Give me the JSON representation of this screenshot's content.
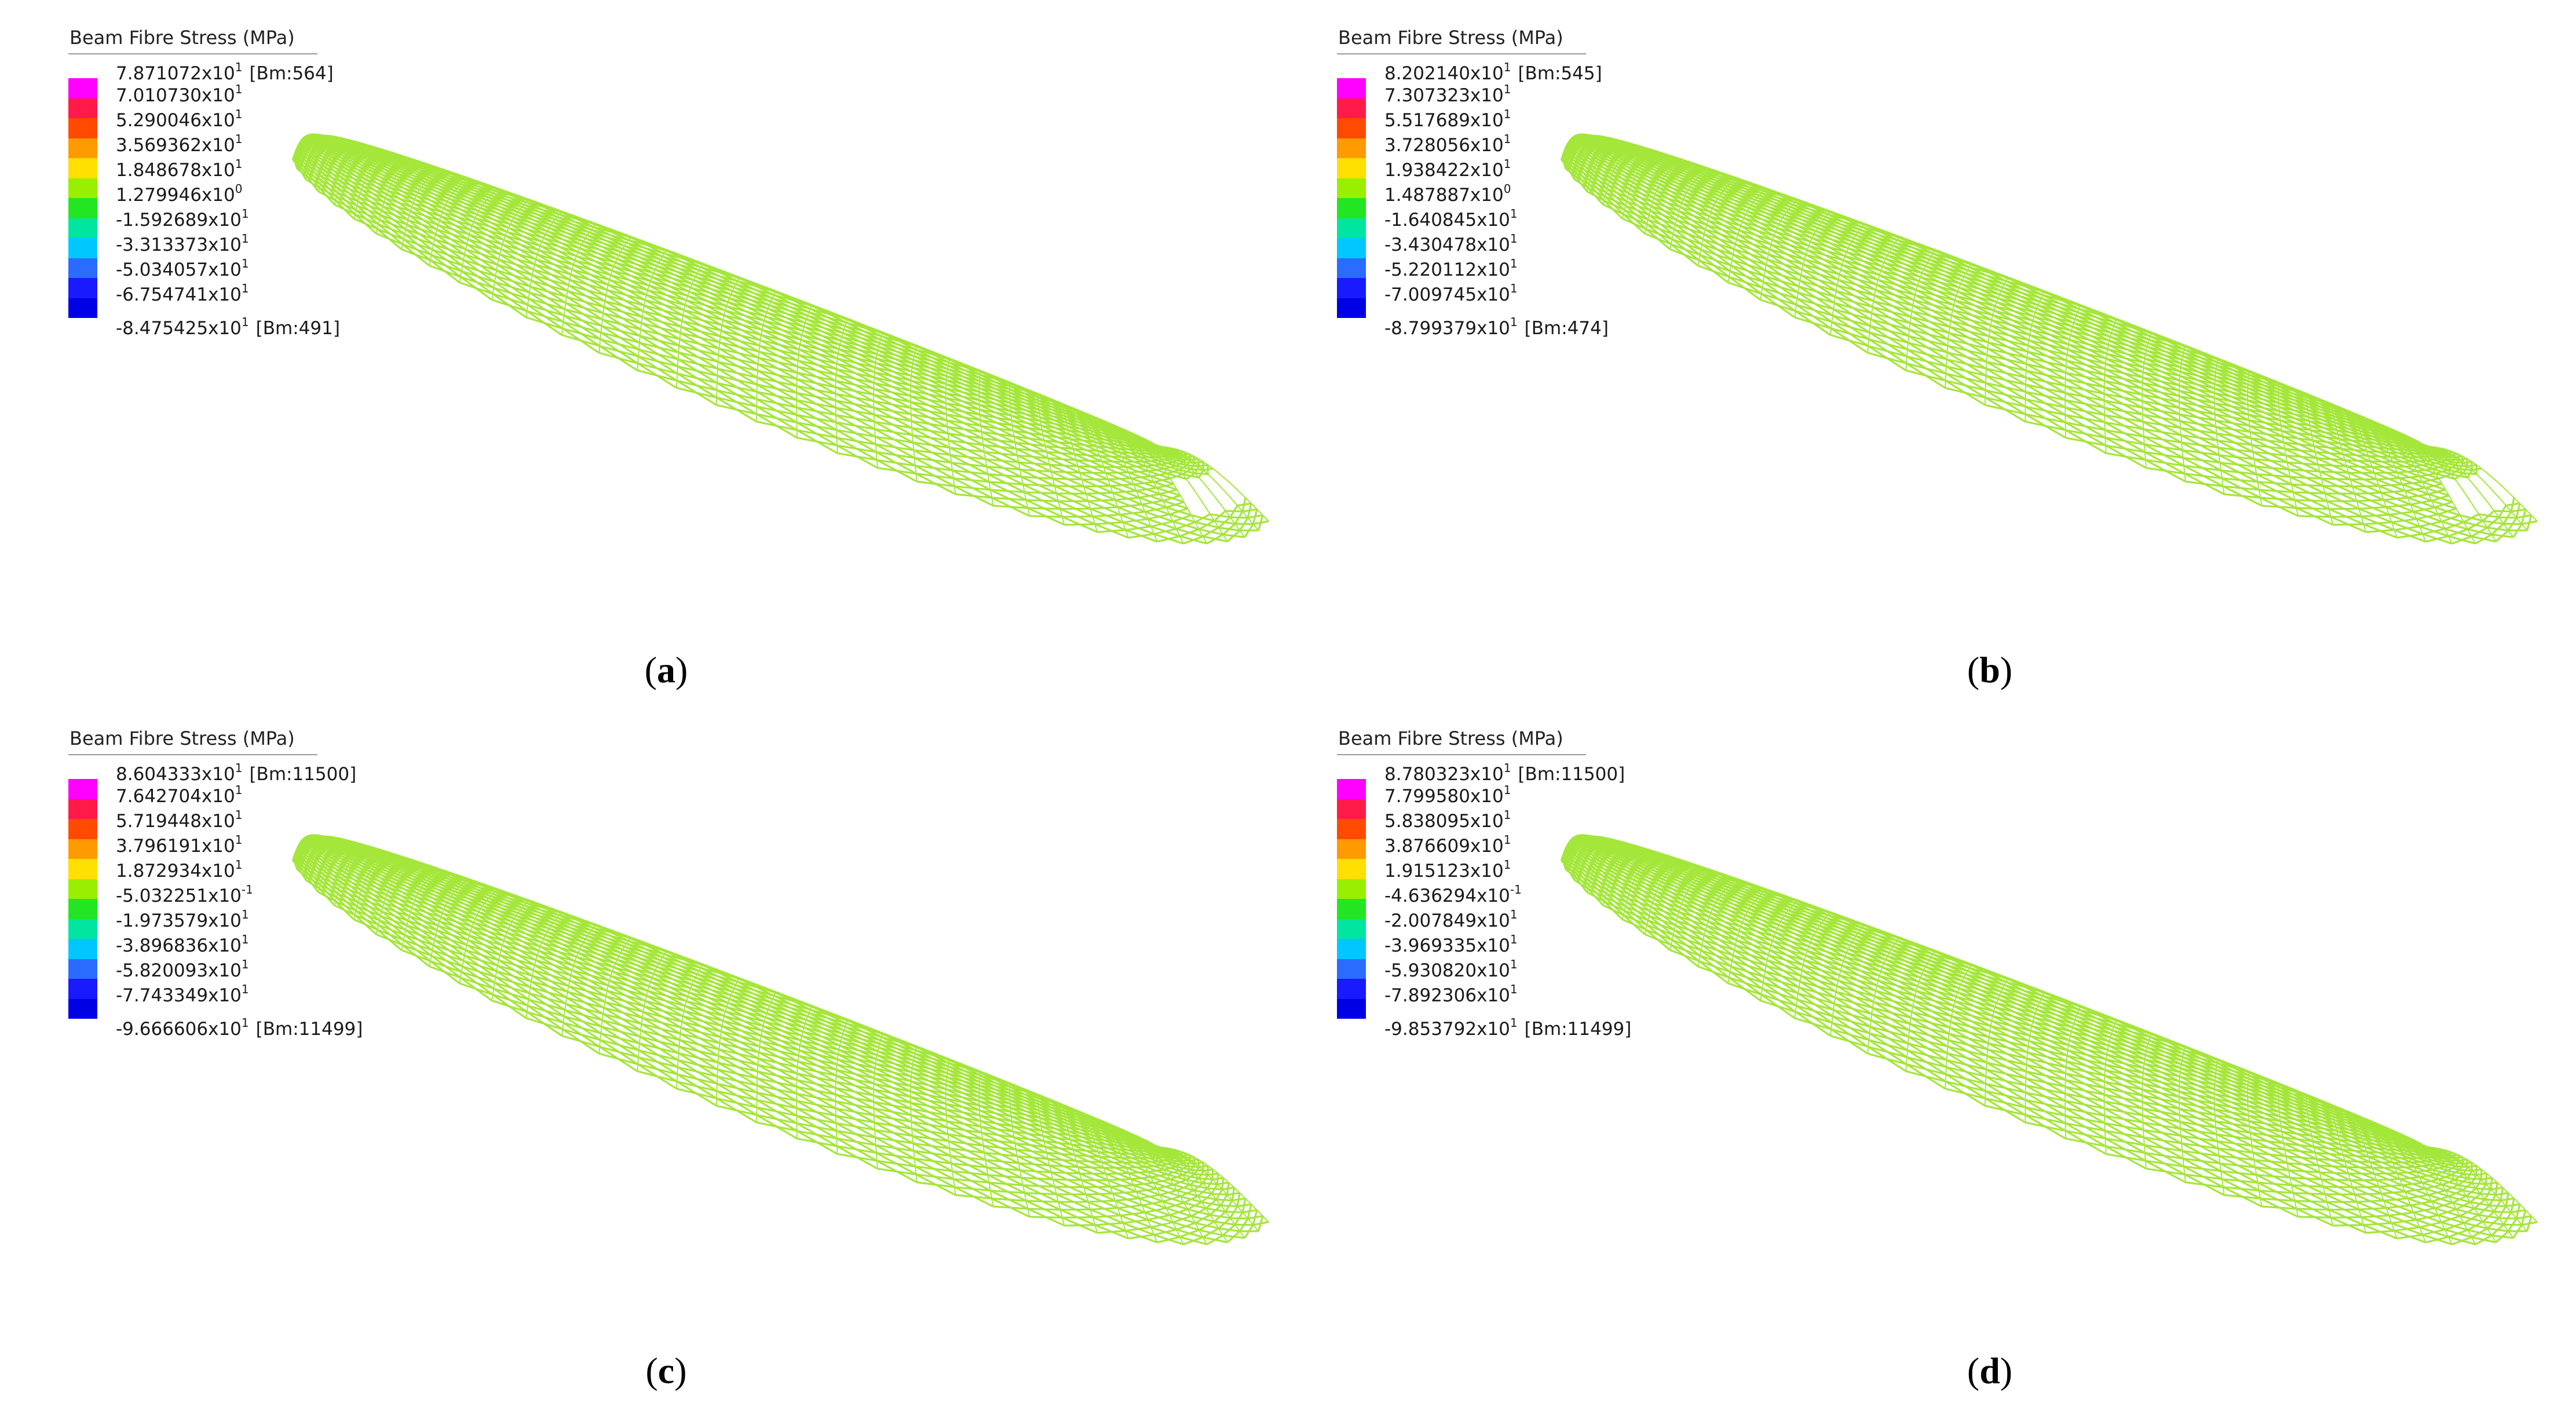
{
  "panels": [
    {
      "caption_letter": "a",
      "legend": {
        "title": "Beam Fibre Stress  (MPa)",
        "max": {
          "mant": "7.871072x10",
          "exp": "1",
          "tag": "[Bm:564]"
        },
        "levels": [
          {
            "mant": "7.010730x10",
            "exp": "1"
          },
          {
            "mant": "5.290046x10",
            "exp": "1"
          },
          {
            "mant": "3.569362x10",
            "exp": "1"
          },
          {
            "mant": "1.848678x10",
            "exp": "1"
          },
          {
            "mant": "1.279946x10",
            "exp": "0"
          },
          {
            "mant": "-1.592689x10",
            "exp": "1"
          },
          {
            "mant": "-3.313373x10",
            "exp": "1"
          },
          {
            "mant": "-5.034057x10",
            "exp": "1"
          },
          {
            "mant": "-6.754741x10",
            "exp": "1"
          }
        ],
        "min": {
          "mant": "-8.475425x10",
          "exp": "1",
          "tag": "[Bm:491]"
        }
      }
    },
    {
      "caption_letter": "b",
      "legend": {
        "title": "Beam Fibre Stress  (MPa)",
        "max": {
          "mant": "8.202140x10",
          "exp": "1",
          "tag": "[Bm:545]"
        },
        "levels": [
          {
            "mant": "7.307323x10",
            "exp": "1"
          },
          {
            "mant": "5.517689x10",
            "exp": "1"
          },
          {
            "mant": "3.728056x10",
            "exp": "1"
          },
          {
            "mant": "1.938422x10",
            "exp": "1"
          },
          {
            "mant": "1.487887x10",
            "exp": "0"
          },
          {
            "mant": "-1.640845x10",
            "exp": "1"
          },
          {
            "mant": "-3.430478x10",
            "exp": "1"
          },
          {
            "mant": "-5.220112x10",
            "exp": "1"
          },
          {
            "mant": "-7.009745x10",
            "exp": "1"
          }
        ],
        "min": {
          "mant": "-8.799379x10",
          "exp": "1",
          "tag": "[Bm:474]"
        }
      }
    },
    {
      "caption_letter": "c",
      "legend": {
        "title": "Beam Fibre Stress  (MPa)",
        "max": {
          "mant": "8.604333x10",
          "exp": "1",
          "tag": "[Bm:11500]"
        },
        "levels": [
          {
            "mant": "7.642704x10",
            "exp": "1"
          },
          {
            "mant": "5.719448x10",
            "exp": "1"
          },
          {
            "mant": "3.796191x10",
            "exp": "1"
          },
          {
            "mant": "1.872934x10",
            "exp": "1"
          },
          {
            "mant": "-5.032251x10",
            "exp": "-1"
          },
          {
            "mant": "-1.973579x10",
            "exp": "1"
          },
          {
            "mant": "-3.896836x10",
            "exp": "1"
          },
          {
            "mant": "-5.820093x10",
            "exp": "1"
          },
          {
            "mant": "-7.743349x10",
            "exp": "1"
          }
        ],
        "min": {
          "mant": "-9.666606x10",
          "exp": "1",
          "tag": "[Bm:11499]"
        }
      }
    },
    {
      "caption_letter": "d",
      "legend": {
        "title": "Beam Fibre Stress  (MPa)",
        "max": {
          "mant": "8.780323x10",
          "exp": "1",
          "tag": "[Bm:11500]"
        },
        "levels": [
          {
            "mant": "7.799580x10",
            "exp": "1"
          },
          {
            "mant": "5.838095x10",
            "exp": "1"
          },
          {
            "mant": "3.876609x10",
            "exp": "1"
          },
          {
            "mant": "1.915123x10",
            "exp": "1"
          },
          {
            "mant": "-4.636294x10",
            "exp": "-1"
          },
          {
            "mant": "-2.007849x10",
            "exp": "1"
          },
          {
            "mant": "-3.969335x10",
            "exp": "1"
          },
          {
            "mant": "-5.930820x10",
            "exp": "1"
          },
          {
            "mant": "-7.892306x10",
            "exp": "1"
          }
        ],
        "min": {
          "mant": "-9.853792x10",
          "exp": "1",
          "tag": "[Bm:11499]"
        }
      }
    }
  ],
  "colorbar_colors": [
    "#ff00ff",
    "#ff1a4a",
    "#ff4a00",
    "#ff9a00",
    "#ffe000",
    "#9aee00",
    "#22e622",
    "#00e6a0",
    "#00c8ff",
    "#2a6cff",
    "#1a1aff",
    "#0000e6"
  ],
  "mesh_color": "#a4e63a"
}
